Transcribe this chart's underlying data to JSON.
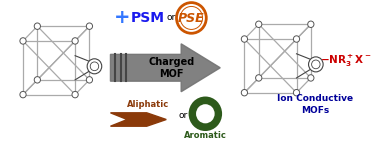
{
  "bg_color": "#ffffff",
  "psm_text": "PSM",
  "pse_text": "PSE",
  "psm_color": "#1a1aee",
  "pse_color": "#cc5500",
  "pse_circle_color": "#cc5500",
  "plus_color": "#3377ff",
  "charged_mof_text": "Charged\nMOF",
  "arrow_color": "#777777",
  "nr3x_color": "#cc0000",
  "ion_text": "Ion Conductive\nMOFs",
  "ion_color": "#000099",
  "aliphatic_text": "Aliphatic",
  "aliphatic_color": "#8B3A0A",
  "aromatic_text": "Aromatic",
  "aromatic_color": "#2d5a1b",
  "or_text": "or",
  "node_color": "#aaaaaa",
  "node_edge": "#555555",
  "line_color": "#aaaaaa",
  "benzene_color": "#444444"
}
